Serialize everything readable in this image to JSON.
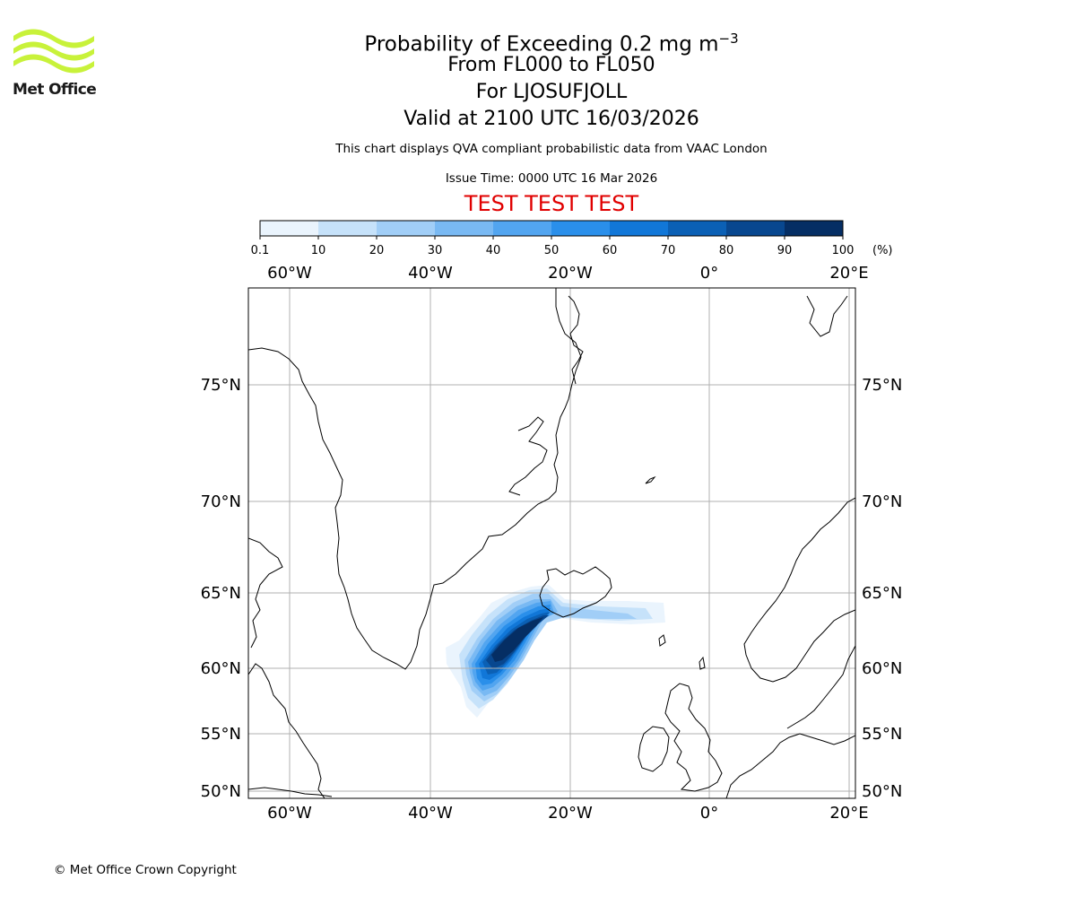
{
  "header": {
    "logo_text": "Met Office",
    "logo_color": "#c8f23a",
    "title_prefix": "Probability of Exceeding 0.2 mg m",
    "title_exponent": "−3",
    "level_range": "From FL000 to FL050",
    "volcano": "For LJOSUFJOLL",
    "valid_time": "Valid at 2100 UTC 16/03/2026",
    "disclaimer": "This chart displays QVA compliant probabilistic data from VAAC London",
    "issue_time": "Issue Time: 0000 UTC 16 Mar 2026",
    "test_banner": "TEST TEST TEST",
    "test_color": "#e00000"
  },
  "colorbar": {
    "labels": [
      "0.1",
      "10",
      "20",
      "30",
      "40",
      "50",
      "60",
      "70",
      "80",
      "90",
      "100"
    ],
    "unit": "(%)",
    "colors": [
      "#eaf4fd",
      "#c6e2fa",
      "#a1cef7",
      "#79b9f3",
      "#52a5f0",
      "#2a8fea",
      "#1177d8",
      "#0b60b5",
      "#08478f",
      "#052e64"
    ]
  },
  "map": {
    "lon_labels": [
      "60°W",
      "40°W",
      "20°W",
      "0°",
      "20°E"
    ],
    "lat_labels": [
      "75°N",
      "70°N",
      "65°N",
      "60°N",
      "55°N",
      "50°N"
    ],
    "grid_color": "#b0b0b0"
  },
  "footer": {
    "copyright": "© Met Office Crown Copyright"
  }
}
